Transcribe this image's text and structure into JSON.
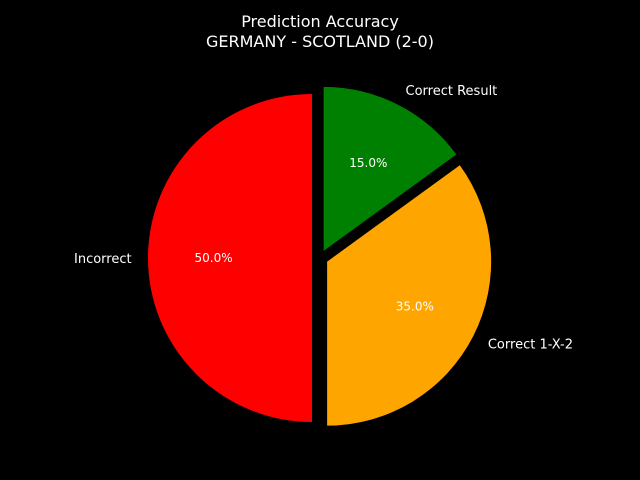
{
  "chart_data": {
    "type": "pie",
    "title": "Prediction Accuracy",
    "subtitle": "GERMANY - SCOTLAND (2-0)",
    "slices": [
      {
        "label": "Incorrect",
        "value": 50.0,
        "pct_label": "50.0%",
        "color": "#ff0000"
      },
      {
        "label": "Correct 1-X-2",
        "value": 35.0,
        "pct_label": "35.0%",
        "color": "#ffa500"
      },
      {
        "label": "Correct Result",
        "value": 15.0,
        "pct_label": "15.0%",
        "color": "#008000"
      }
    ],
    "start_angle": 90,
    "exploded": true
  }
}
